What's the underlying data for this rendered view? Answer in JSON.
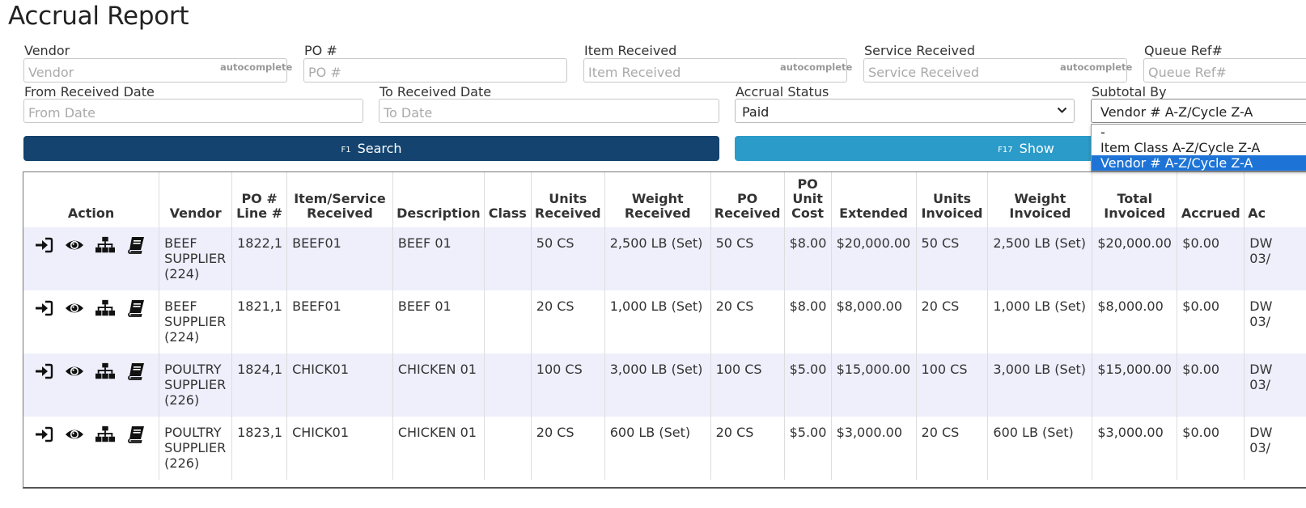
{
  "page": {
    "title": "Accrual Report"
  },
  "filters": {
    "vendor": {
      "label": "Vendor",
      "placeholder": "Vendor",
      "tag": "autocomplete"
    },
    "po": {
      "label": "PO #",
      "placeholder": "PO #"
    },
    "item_received": {
      "label": "Item Received",
      "placeholder": "Item Received",
      "tag": "autocomplete"
    },
    "service_received": {
      "label": "Service Received",
      "placeholder": "Service Received",
      "tag": "autocomplete"
    },
    "queue_ref": {
      "label": "Queue Ref#",
      "placeholder": "Queue Ref#"
    },
    "from_date": {
      "label": "From Received Date",
      "placeholder": "From Date"
    },
    "to_date": {
      "label": "To Received Date",
      "placeholder": "To Date"
    },
    "accrual_status": {
      "label": "Accrual Status",
      "value": "Paid"
    },
    "subtotal_by": {
      "label": "Subtotal By",
      "value": "Vendor # A-Z/Cycle Z-A",
      "options": [
        "-",
        "Item Class A-Z/Cycle Z-A",
        "Vendor # A-Z/Cycle Z-A"
      ]
    }
  },
  "buttons": {
    "search": {
      "key": "F1",
      "label": "Search"
    },
    "show": {
      "key": "F17",
      "label": "Show"
    }
  },
  "table": {
    "headers": {
      "action": "Action",
      "vendor": "Vendor",
      "po_line": [
        "PO #",
        "Line #"
      ],
      "item_service": [
        "Item/Service",
        "Received"
      ],
      "description": "Description",
      "class": "Class",
      "units_received": [
        "Units",
        "Received"
      ],
      "weight_received": [
        "Weight",
        "Received"
      ],
      "po_received": [
        "PO",
        "Received"
      ],
      "po_unit_cost": [
        "PO",
        "Unit",
        "Cost"
      ],
      "extended": "Extended",
      "units_invoiced": [
        "Units",
        "Invoiced"
      ],
      "weight_invoiced": [
        "Weight",
        "Invoiced"
      ],
      "total_invoiced": [
        "Total",
        "Invoiced"
      ],
      "accrued": "Accrued",
      "ac": "Ac"
    },
    "action_icons": [
      "sign-in-icon",
      "eye-icon",
      "sitemap-icon",
      "book-icon"
    ],
    "rows": [
      {
        "vendor": [
          "BEEF",
          "SUPPLIER",
          "(224)"
        ],
        "po_line": "1822,1",
        "item": "BEEF01",
        "description": "BEEF 01",
        "class": "",
        "units_received": "50 CS",
        "weight_received": "2,500 LB (Set)",
        "po_received": "50 CS",
        "po_unit_cost": "$8.00",
        "extended": "$20,000.00",
        "units_invoiced": "50 CS",
        "weight_invoiced": "2,500 LB (Set)",
        "total_invoiced": "$20,000.00",
        "accrued": "$0.00",
        "ac": [
          "DW",
          "03/"
        ]
      },
      {
        "vendor": [
          "BEEF",
          "SUPPLIER",
          "(224)"
        ],
        "po_line": "1821,1",
        "item": "BEEF01",
        "description": "BEEF 01",
        "class": "",
        "units_received": "20 CS",
        "weight_received": "1,000 LB (Set)",
        "po_received": "20 CS",
        "po_unit_cost": "$8.00",
        "extended": "$8,000.00",
        "units_invoiced": "20 CS",
        "weight_invoiced": "1,000 LB (Set)",
        "total_invoiced": "$8,000.00",
        "accrued": "$0.00",
        "ac": [
          "DW",
          "03/"
        ]
      },
      {
        "vendor": [
          "POULTRY",
          "SUPPLIER",
          "(226)"
        ],
        "po_line": "1824,1",
        "item": "CHICK01",
        "description": "CHICKEN 01",
        "class": "",
        "units_received": "100 CS",
        "weight_received": "3,000 LB (Set)",
        "po_received": "100 CS",
        "po_unit_cost": "$5.00",
        "extended": "$15,000.00",
        "units_invoiced": "100 CS",
        "weight_invoiced": "3,000 LB (Set)",
        "total_invoiced": "$15,000.00",
        "accrued": "$0.00",
        "ac": [
          "DW",
          "03/"
        ]
      },
      {
        "vendor": [
          "POULTRY",
          "SUPPLIER",
          "(226)"
        ],
        "po_line": "1823,1",
        "item": "CHICK01",
        "description": "CHICKEN 01",
        "class": "",
        "units_received": "20 CS",
        "weight_received": "600 LB (Set)",
        "po_received": "20 CS",
        "po_unit_cost": "$5.00",
        "extended": "$3,000.00",
        "units_invoiced": "20 CS",
        "weight_invoiced": "600 LB (Set)",
        "total_invoiced": "$3,000.00",
        "accrued": "$0.00",
        "ac": [
          "DW",
          "03/"
        ]
      }
    ]
  },
  "colors": {
    "search_button": "#13436e",
    "show_button": "#2b9bc9",
    "row_alt": "#eeeffb",
    "option_selected": "#1e74d6"
  }
}
